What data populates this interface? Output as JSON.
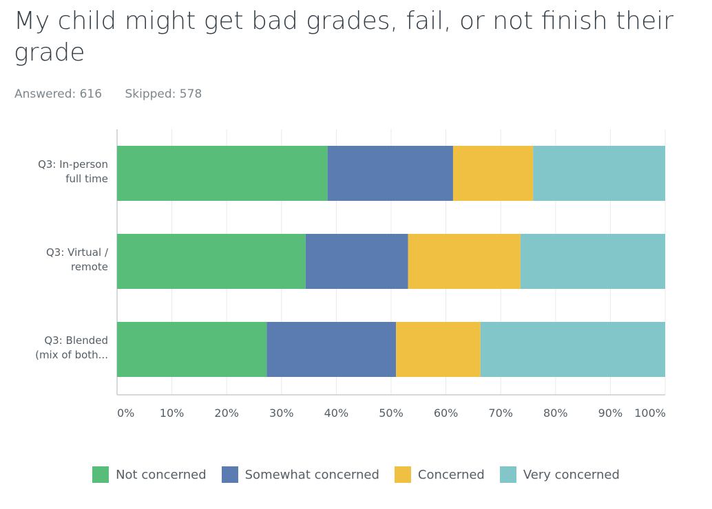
{
  "header": {
    "title": "My child might get bad grades, fail, or not finish their grade",
    "answered_label": "Answered: 616",
    "skipped_label": "Skipped: 578"
  },
  "chart_data": {
    "type": "bar",
    "orientation": "horizontal",
    "stacked": true,
    "categories": [
      "Q3: In-person full time",
      "Q3: Virtual / remote",
      "Q3: Blended (mix of both..."
    ],
    "category_lines": [
      [
        "Q3: In-person",
        "full time"
      ],
      [
        "Q3: Virtual /",
        "remote"
      ],
      [
        "Q3: Blended",
        "(mix of both..."
      ]
    ],
    "series": [
      {
        "name": "Not concerned",
        "color": "#57bd79",
        "values": [
          38.4,
          34.4,
          27.3
        ]
      },
      {
        "name": "Somewhat concerned",
        "color": "#5b7cb1",
        "values": [
          22.9,
          18.7,
          23.6
        ]
      },
      {
        "name": "Concerned",
        "color": "#f0c043",
        "values": [
          14.6,
          20.5,
          15.4
        ]
      },
      {
        "name": "Very concerned",
        "color": "#82c6ca",
        "values": [
          24.1,
          26.4,
          33.7
        ]
      }
    ],
    "x_ticks": [
      "0%",
      "10%",
      "20%",
      "30%",
      "40%",
      "50%",
      "60%",
      "70%",
      "80%",
      "90%",
      "100%"
    ],
    "xlim": [
      0,
      100
    ],
    "grid": true,
    "legend_position": "bottom"
  }
}
